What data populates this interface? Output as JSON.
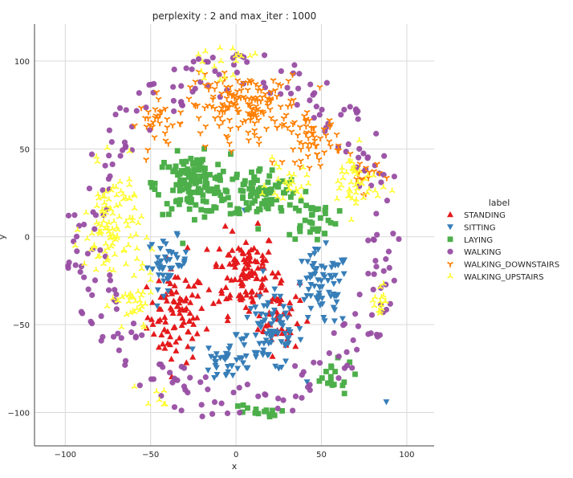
{
  "chart_data": {
    "type": "scatter",
    "title": "perplexity : 2 and max_iter : 1000",
    "xlabel": "x",
    "ylabel": "y",
    "xlim": [
      -118,
      116
    ],
    "ylim": [
      -119,
      121
    ],
    "xticks": [
      -100,
      -50,
      0,
      50,
      100
    ],
    "yticks": [
      -100,
      -50,
      0,
      50,
      100
    ],
    "grid": true,
    "legend": {
      "title": "label",
      "placement": "right"
    },
    "series": [
      {
        "name": "STANDING",
        "color": "#e41a1c",
        "marker": "triangle-up",
        "clusters": [
          {
            "center": [
              -35,
              -45
            ],
            "spread": [
              14,
              22
            ],
            "count": 90
          },
          {
            "center": [
              5,
              -20
            ],
            "spread": [
              16,
              20
            ],
            "count": 110
          },
          {
            "center": [
              25,
              -45
            ],
            "spread": [
              10,
              18
            ],
            "count": 45
          }
        ]
      },
      {
        "name": "SITTING",
        "color": "#377eb8",
        "marker": "triangle-down",
        "clusters": [
          {
            "center": [
              -40,
              -15
            ],
            "spread": [
              10,
              12
            ],
            "count": 45
          },
          {
            "center": [
              20,
              -55
            ],
            "spread": [
              16,
              18
            ],
            "count": 80
          },
          {
            "center": [
              50,
              -30
            ],
            "spread": [
              14,
              18
            ],
            "count": 75
          },
          {
            "center": [
              -5,
              -70
            ],
            "spread": [
              12,
              10
            ],
            "count": 35
          }
        ],
        "points": [
          [
            88,
            -94
          ],
          [
            5,
            15
          ]
        ]
      },
      {
        "name": "LAYING",
        "color": "#4daf4a",
        "marker": "square",
        "clusters": [
          {
            "center": [
              -25,
              30
            ],
            "spread": [
              18,
              14
            ],
            "count": 140
          },
          {
            "center": [
              15,
              25
            ],
            "spread": [
              18,
              12
            ],
            "count": 90
          },
          {
            "center": [
              45,
              10
            ],
            "spread": [
              12,
              10
            ],
            "count": 35
          },
          {
            "center": [
              55,
              -80
            ],
            "spread": [
              12,
              8
            ],
            "count": 18
          },
          {
            "center": [
              10,
              -100
            ],
            "spread": [
              12,
              4
            ],
            "count": 14
          }
        ]
      },
      {
        "name": "WALKING",
        "color": "#984ea3",
        "marker": "circle",
        "ring": {
          "radius": [
            80,
            105
          ],
          "count": 260
        }
      },
      {
        "name": "WALKING_DOWNSTAIRS",
        "color": "#ff7f00",
        "marker": "tri-down",
        "clusters": [
          {
            "center": [
              5,
              75
            ],
            "spread": [
              28,
              14
            ],
            "count": 160
          },
          {
            "center": [
              45,
              55
            ],
            "spread": [
              14,
              12
            ],
            "count": 55
          },
          {
            "center": [
              -45,
              65
            ],
            "spread": [
              10,
              12
            ],
            "count": 30
          },
          {
            "center": [
              75,
              35
            ],
            "spread": [
              8,
              8
            ],
            "count": 18
          }
        ]
      },
      {
        "name": "WALKING_UPSTAIRS",
        "color": "#ffff33",
        "marker": "tri-up",
        "clusters": [
          {
            "center": [
              -72,
              5
            ],
            "spread": [
              14,
              28
            ],
            "count": 110
          },
          {
            "center": [
              -60,
              -40
            ],
            "spread": [
              10,
              14
            ],
            "count": 30
          },
          {
            "center": [
              70,
              30
            ],
            "spread": [
              12,
              16
            ],
            "count": 45
          },
          {
            "center": [
              30,
              30
            ],
            "spread": [
              10,
              10
            ],
            "count": 25
          },
          {
            "center": [
              -10,
              100
            ],
            "spread": [
              16,
              8
            ],
            "count": 20
          },
          {
            "center": [
              85,
              -35
            ],
            "spread": [
              6,
              10
            ],
            "count": 15
          },
          {
            "center": [
              -45,
              -90
            ],
            "spread": [
              8,
              6
            ],
            "count": 8
          }
        ]
      }
    ]
  }
}
